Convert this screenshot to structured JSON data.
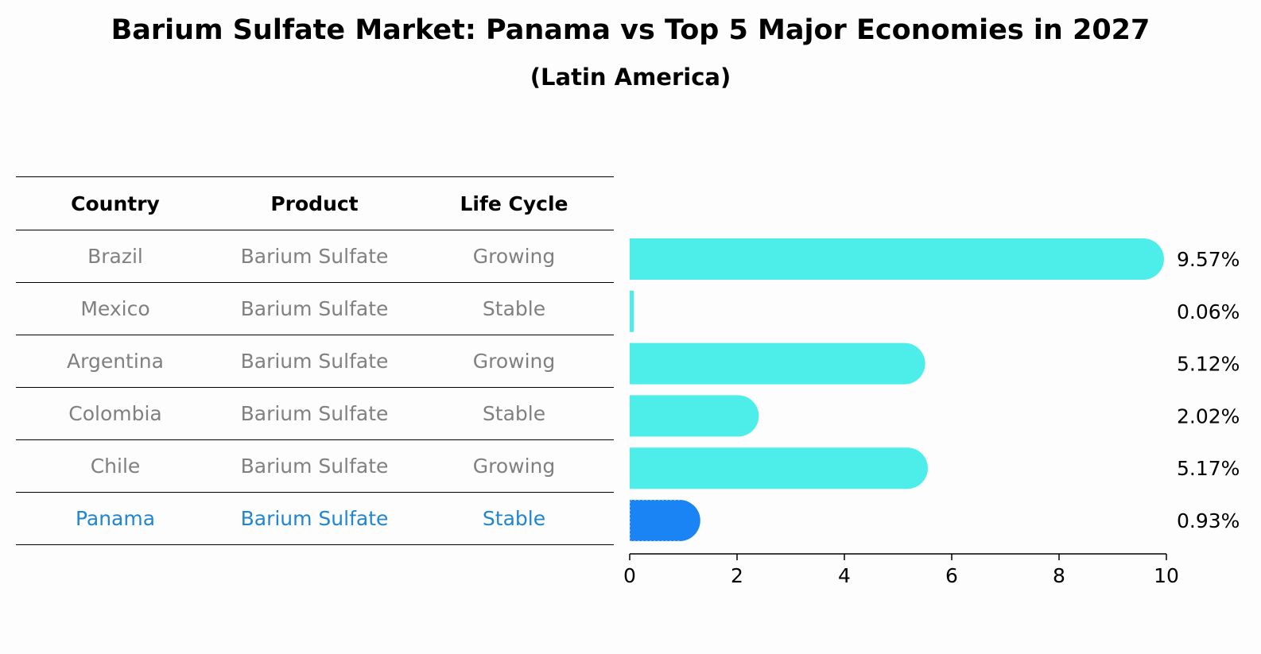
{
  "header": {
    "title": "Barium Sulfate Market: Panama vs Top 5 Major Economies in 2027",
    "subtitle": "(Latin America)"
  },
  "table": {
    "headers": [
      "Country",
      "Product",
      "Life Cycle"
    ],
    "rows": [
      {
        "country": "Brazil",
        "product": "Barium Sulfate",
        "life_cycle": "Growing"
      },
      {
        "country": "Mexico",
        "product": "Barium Sulfate",
        "life_cycle": "Stable"
      },
      {
        "country": "Argentina",
        "product": "Barium Sulfate",
        "life_cycle": "Growing"
      },
      {
        "country": "Colombia",
        "product": "Barium Sulfate",
        "life_cycle": "Stable"
      },
      {
        "country": "Chile",
        "product": "Barium Sulfate",
        "life_cycle": "Growing"
      },
      {
        "country": "Panama",
        "product": "Barium Sulfate",
        "life_cycle": "Stable"
      }
    ],
    "highlight_country": "Panama"
  },
  "colors": {
    "bar": "#4deeea",
    "highlight_bar": "#1a84f5",
    "highlight_text": "#1f86d3",
    "muted_text": "#808080"
  },
  "chart_data": {
    "type": "bar",
    "orientation": "horizontal",
    "categories": [
      "Brazil",
      "Mexico",
      "Argentina",
      "Colombia",
      "Chile",
      "Panama"
    ],
    "values": [
      9.57,
      0.06,
      5.12,
      2.02,
      5.17,
      0.93
    ],
    "value_labels": [
      "9.57%",
      "0.06%",
      "5.12%",
      "2.02%",
      "5.17%",
      "0.93%"
    ],
    "highlight": "Panama",
    "xlim": [
      0,
      10
    ],
    "xticks": [
      0,
      2,
      4,
      6,
      8,
      10
    ],
    "xtick_labels": [
      "0",
      "2",
      "4",
      "6",
      "8",
      "10"
    ],
    "xlabel": "",
    "ylabel": ""
  }
}
